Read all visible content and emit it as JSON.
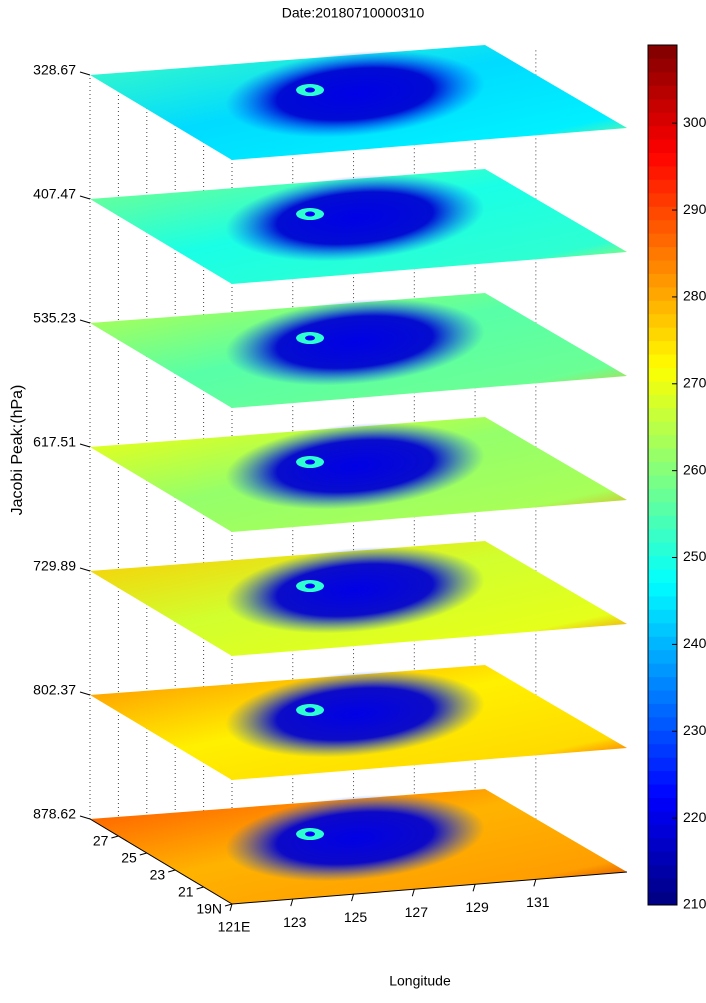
{
  "chart_data": {
    "type": "stacked-surface",
    "title": "Date:20180710000310",
    "y_label": "Jacobi Peak:(hPa)",
    "x_label": "Longitude",
    "levels": [
      328.67,
      407.47,
      535.23,
      617.51,
      729.89,
      802.37,
      878.62
    ],
    "xlim": [
      121,
      134
    ],
    "xticks": [
      {
        "value": 121,
        "label": "121E"
      },
      123,
      125,
      127,
      129,
      131
    ],
    "lat_lim": [
      19,
      29
    ],
    "lat_ticks": [
      {
        "value": 19,
        "label": "19N"
      },
      21,
      23,
      25,
      27
    ],
    "colorbar": {
      "clim": [
        210,
        309
      ],
      "ticks": [
        210,
        220,
        230,
        240,
        250,
        260,
        270,
        280,
        290,
        300
      ],
      "colormap": "jet"
    }
  }
}
